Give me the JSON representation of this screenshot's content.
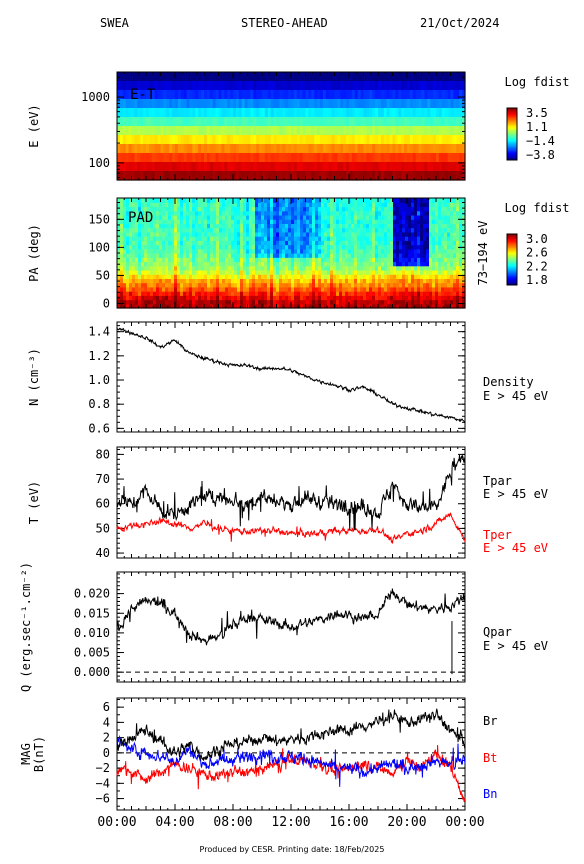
{
  "header": {
    "instrument": "SWEA",
    "spacecraft": "STEREO-AHEAD",
    "date": "21/Oct/2024"
  },
  "footer": "Produced by CESR.   Printing date: 18/Feb/2025",
  "colors": {
    "black_trace": "#000000",
    "red_trace": "#ff0000",
    "blue_trace": "#0000ff"
  },
  "chart_data": [
    {
      "id": "et",
      "type": "heatmap",
      "ylabel": "E (eV)",
      "yscale": "log",
      "ylim": [
        55,
        2400
      ],
      "yticks": [
        {
          "v": 1000,
          "label": "1000"
        },
        {
          "v": 100,
          "label": "100"
        }
      ],
      "label": "E-T",
      "colorbar": {
        "title": "Log fdist",
        "labels": [
          "3.5",
          "1.1",
          "−1.4",
          "−3.8"
        ],
        "range": [
          -3.8,
          3.5
        ]
      },
      "rows": [
        -3.8,
        -3.2,
        -2.6,
        -1.9,
        -1.2,
        -0.6,
        0.2,
        0.9,
        1.6,
        2.2,
        2.8,
        3.3
      ],
      "jitter": 0.25
    },
    {
      "id": "pad",
      "type": "heatmap",
      "ylabel": "PA (deg)",
      "ylim": [
        -8,
        188
      ],
      "yticks": [
        {
          "v": 0,
          "label": "0"
        },
        {
          "v": 50,
          "label": "50"
        },
        {
          "v": 100,
          "label": "100"
        },
        {
          "v": 150,
          "label": "150"
        }
      ],
      "label": "PAD",
      "energy_range": "73−194 eV",
      "colorbar": {
        "title": "Log fdist",
        "labels": [
          "3.0",
          "2.6",
          "2.2",
          "1.8"
        ],
        "range": [
          1.8,
          3.0
        ]
      },
      "profile_pa": [
        0,
        15,
        30,
        45,
        60,
        90,
        120,
        150,
        180
      ],
      "profile_values": [
        2.95,
        2.85,
        2.72,
        2.62,
        2.45,
        2.35,
        2.32,
        2.32,
        2.3
      ],
      "dip_intervals": [
        {
          "t": [
            9.5,
            14.0
          ],
          "pa_min": 80,
          "amount": 0.22
        },
        {
          "t": [
            19.0,
            21.5
          ],
          "pa_min": 70,
          "amount": 0.55
        }
      ]
    },
    {
      "id": "density",
      "type": "line",
      "ylabel": "N (cm⁻³)",
      "ylim": [
        0.57,
        1.48
      ],
      "yticks": [
        {
          "v": 0.6,
          "label": "0.6"
        },
        {
          "v": 0.8,
          "label": "0.8"
        },
        {
          "v": 1.0,
          "label": "1.0"
        },
        {
          "v": 1.2,
          "label": "1.2"
        },
        {
          "v": 1.4,
          "label": "1.4"
        }
      ],
      "series": [
        {
          "name": "Density",
          "sublabel": "E > 45 eV",
          "color": "#000000",
          "x": [
            0,
            1,
            2,
            3,
            4,
            5,
            6,
            7,
            8,
            9,
            10,
            11,
            12,
            13,
            14,
            15,
            16,
            17,
            18,
            19,
            20,
            21,
            22,
            23,
            24
          ],
          "y": [
            1.43,
            1.39,
            1.35,
            1.27,
            1.33,
            1.22,
            1.18,
            1.15,
            1.12,
            1.12,
            1.09,
            1.1,
            1.08,
            1.03,
            0.99,
            0.96,
            0.92,
            0.94,
            0.88,
            0.8,
            0.77,
            0.74,
            0.71,
            0.69,
            0.66
          ],
          "noise": 0.012
        }
      ]
    },
    {
      "id": "temperature",
      "type": "line",
      "ylabel": "T (eV)",
      "ylim": [
        38,
        83
      ],
      "yticks": [
        {
          "v": 40,
          "label": "40"
        },
        {
          "v": 50,
          "label": "50"
        },
        {
          "v": 60,
          "label": "60"
        },
        {
          "v": 70,
          "label": "70"
        },
        {
          "v": 80,
          "label": "80"
        }
      ],
      "series": [
        {
          "name": "Tpar",
          "sublabel": "E > 45 eV",
          "color": "#000000",
          "x": [
            0,
            1,
            2,
            3,
            4,
            5,
            6,
            7,
            8,
            9,
            10,
            11,
            12,
            13,
            14,
            15,
            16,
            17,
            18,
            19,
            20,
            21,
            22,
            23,
            24
          ],
          "y": [
            62,
            60,
            65,
            58,
            55,
            60,
            62,
            63,
            62,
            60,
            63,
            61,
            60,
            62,
            61,
            60,
            60,
            58,
            56,
            68,
            60,
            58,
            58,
            73,
            79
          ],
          "noise": 2.6
        },
        {
          "name": "Tper",
          "sublabel": "E > 45 eV",
          "color": "#ff0000",
          "x": [
            0,
            1,
            2,
            3,
            4,
            5,
            6,
            7,
            8,
            9,
            10,
            11,
            12,
            13,
            14,
            15,
            16,
            17,
            18,
            19,
            20,
            21,
            22,
            23,
            24
          ],
          "y": [
            50,
            51,
            52,
            53,
            52,
            50,
            52,
            50,
            49,
            49,
            49,
            49,
            48,
            48,
            48,
            49,
            49,
            49,
            50,
            45,
            48,
            49,
            52,
            56,
            45
          ],
          "noise": 1.1
        }
      ]
    },
    {
      "id": "heatflux",
      "type": "line",
      "ylabel": "Q (erg.sec⁻¹.cm⁻²)",
      "ylim": [
        -0.0025,
        0.0255
      ],
      "yticks": [
        {
          "v": 0.0,
          "label": "0.000"
        },
        {
          "v": 0.005,
          "label": "0.005"
        },
        {
          "v": 0.01,
          "label": "0.010"
        },
        {
          "v": 0.015,
          "label": "0.015"
        },
        {
          "v": 0.02,
          "label": "0.020"
        }
      ],
      "zero_line": true,
      "series": [
        {
          "name": "Qpar",
          "sublabel": "E > 45 eV",
          "color": "#000000",
          "x": [
            0,
            1,
            2,
            3,
            4,
            5,
            6,
            7,
            8,
            9,
            10,
            11,
            12,
            13,
            14,
            15,
            16,
            17,
            18,
            19,
            20,
            21,
            22,
            23,
            24
          ],
          "y": [
            0.011,
            0.016,
            0.018,
            0.0175,
            0.015,
            0.01,
            0.008,
            0.009,
            0.012,
            0.014,
            0.0135,
            0.0125,
            0.0115,
            0.0125,
            0.0135,
            0.015,
            0.0145,
            0.0135,
            0.0145,
            0.021,
            0.017,
            0.0165,
            0.016,
            0.017,
            0.019
          ],
          "noise": 0.0011
        }
      ]
    },
    {
      "id": "mag",
      "type": "line",
      "ylabel": "MAG",
      "ylabel2": "B(nT)",
      "ylim": [
        -7.5,
        7.2
      ],
      "yticks": [
        {
          "v": -6,
          "label": "−6"
        },
        {
          "v": -4,
          "label": "−4"
        },
        {
          "v": -2,
          "label": "−2"
        },
        {
          "v": 0,
          "label": "0"
        },
        {
          "v": 2,
          "label": "2"
        },
        {
          "v": 4,
          "label": "4"
        },
        {
          "v": 6,
          "label": "6"
        }
      ],
      "zero_line": true,
      "series": [
        {
          "name": "Br",
          "color": "#000000",
          "x": [
            0,
            1,
            2,
            3,
            4,
            5,
            6,
            7,
            8,
            9,
            10,
            11,
            12,
            13,
            14,
            15,
            16,
            17,
            18,
            19,
            20,
            21,
            22,
            23,
            24
          ],
          "y": [
            1.0,
            2.0,
            3.0,
            1.5,
            0.0,
            1.0,
            -0.5,
            0.5,
            1.2,
            1.5,
            2.0,
            1.5,
            1.8,
            2.0,
            2.5,
            3.0,
            3.0,
            3.5,
            4.0,
            5.0,
            4.0,
            4.5,
            5.0,
            3.0,
            1.5
          ],
          "noise": 0.6
        },
        {
          "name": "Bt",
          "color": "#ff0000",
          "x": [
            0,
            1,
            2,
            3,
            4,
            5,
            6,
            7,
            8,
            9,
            10,
            11,
            12,
            13,
            14,
            15,
            16,
            17,
            18,
            19,
            20,
            21,
            22,
            23,
            24
          ],
          "y": [
            -2.0,
            -2.5,
            -3.5,
            -2.5,
            -1.5,
            -2.0,
            -2.8,
            -3.0,
            -2.5,
            -2.5,
            -2.2,
            -1.5,
            -1.0,
            -1.0,
            -1.5,
            -2.5,
            -2.0,
            -1.5,
            -2.0,
            -2.5,
            -1.0,
            -2.0,
            0.0,
            -2.0,
            -6.0
          ],
          "noise": 0.6
        },
        {
          "name": "Bn",
          "color": "#0000ff",
          "x": [
            0,
            1,
            2,
            3,
            4,
            5,
            6,
            7,
            8,
            9,
            10,
            11,
            12,
            13,
            14,
            15,
            16,
            17,
            18,
            19,
            20,
            21,
            22,
            23,
            24
          ],
          "y": [
            1.5,
            0.5,
            0.0,
            -0.5,
            -1.0,
            0.5,
            -1.5,
            -1.0,
            -1.0,
            -0.5,
            0.0,
            -0.5,
            -0.5,
            -0.8,
            -1.2,
            -2.0,
            -2.0,
            -2.5,
            -2.0,
            -1.5,
            -2.0,
            -1.5,
            -1.0,
            -1.5,
            -1.0
          ],
          "noise": 0.65
        }
      ]
    }
  ],
  "xaxis": {
    "range": [
      0,
      24
    ],
    "ticks": [
      {
        "v": 0,
        "label": "00:00"
      },
      {
        "v": 4,
        "label": "04:00"
      },
      {
        "v": 8,
        "label": "08:00"
      },
      {
        "v": 12,
        "label": "12:00"
      },
      {
        "v": 16,
        "label": "16:00"
      },
      {
        "v": 20,
        "label": "20:00"
      },
      {
        "v": 24,
        "label": "00:00"
      }
    ]
  }
}
